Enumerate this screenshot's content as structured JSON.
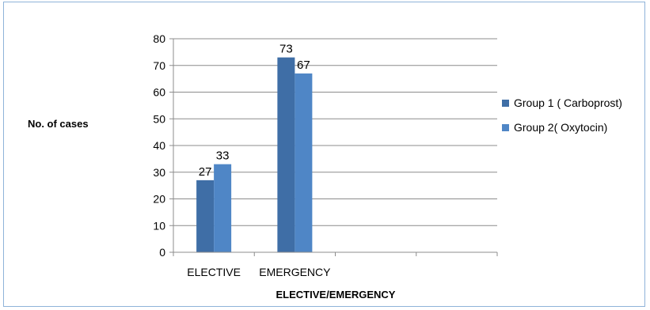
{
  "chart_data": {
    "type": "bar",
    "categories": [
      "ELECTIVE",
      "EMERGENCY",
      "",
      ""
    ],
    "series": [
      {
        "name": "Group 1 ( Carboprost)",
        "values": [
          27,
          73,
          null,
          null
        ],
        "color": "#3f6ea6"
      },
      {
        "name": "Group 2( Oxytocin)",
        "values": [
          33,
          67,
          null,
          null
        ],
        "color": "#4f86c6"
      }
    ],
    "title": "",
    "xlabel": "ELECTIVE/EMERGENCY",
    "ylabel": "No. of cases",
    "ylim": [
      0,
      80
    ],
    "yticks": [
      "0",
      "10",
      "20",
      "30",
      "40",
      "50",
      "60",
      "70",
      "80"
    ],
    "grid": true,
    "legend_position": "right"
  }
}
